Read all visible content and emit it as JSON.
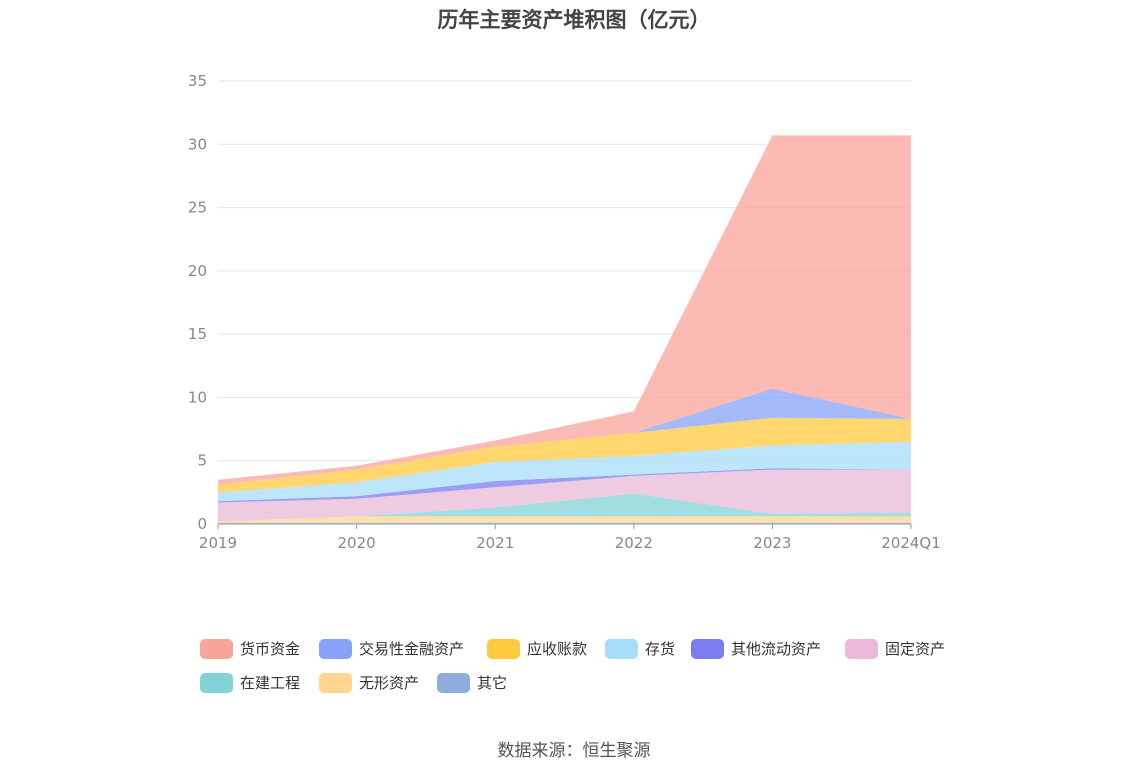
{
  "chart_data": {
    "type": "area",
    "stacked": true,
    "title": "历年主要资产堆积图（亿元）",
    "categories": [
      "2019",
      "2020",
      "2021",
      "2022",
      "2023",
      "2024Q1"
    ],
    "y_ticks": [
      "0",
      "5",
      "10",
      "15",
      "20",
      "25",
      "30",
      "35"
    ],
    "ylim": [
      0,
      35
    ],
    "grid": true,
    "legend_position": "bottom",
    "series": [
      {
        "name": "其它",
        "color": "#8FACDB",
        "values": [
          0.1,
          0.1,
          0.1,
          0.1,
          0.1,
          0.1
        ]
      },
      {
        "name": "无形资产",
        "color": "#FFD591",
        "values": [
          0.1,
          0.5,
          0.5,
          0.5,
          0.5,
          0.5
        ]
      },
      {
        "name": "在建工程",
        "color": "#81D3D6",
        "values": [
          0.0,
          0.0,
          0.7,
          1.8,
          0.2,
          0.3
        ]
      },
      {
        "name": "固定资产",
        "color": "#E9B9D7",
        "values": [
          1.5,
          1.4,
          1.6,
          1.4,
          3.5,
          3.4
        ]
      },
      {
        "name": "其他流动资产",
        "color": "#7B7CF0",
        "values": [
          0.1,
          0.2,
          0.5,
          0.1,
          0.1,
          0.0
        ]
      },
      {
        "name": "存货",
        "color": "#A8DDF8",
        "values": [
          0.7,
          1.1,
          1.5,
          1.5,
          1.8,
          2.2
        ]
      },
      {
        "name": "应收账款",
        "color": "#FFC93E",
        "values": [
          0.6,
          1.0,
          1.2,
          1.8,
          2.2,
          1.8
        ]
      },
      {
        "name": "交易性金融资产",
        "color": "#87A3F8",
        "values": [
          0.0,
          0.0,
          0.0,
          0.0,
          2.3,
          0.0
        ]
      },
      {
        "name": "货币资金",
        "color": "#F9A49B",
        "values": [
          0.4,
          0.3,
          0.5,
          1.7,
          20.0,
          22.4
        ]
      }
    ]
  },
  "legend": [
    {
      "label": "货币资金",
      "color": "#F9A49B"
    },
    {
      "label": "交易性金融资产",
      "color": "#87A3F8"
    },
    {
      "label": "应收账款",
      "color": "#FFC93E"
    },
    {
      "label": "存货",
      "color": "#A8DDF8"
    },
    {
      "label": "其他流动资产",
      "color": "#7B7CF0"
    },
    {
      "label": "固定资产",
      "color": "#E9B9D7"
    },
    {
      "label": "在建工程",
      "color": "#81D3D6"
    },
    {
      "label": "无形资产",
      "color": "#FFD591"
    },
    {
      "label": "其它",
      "color": "#8FACDB"
    }
  ],
  "source": "数据来源：恒生聚源"
}
